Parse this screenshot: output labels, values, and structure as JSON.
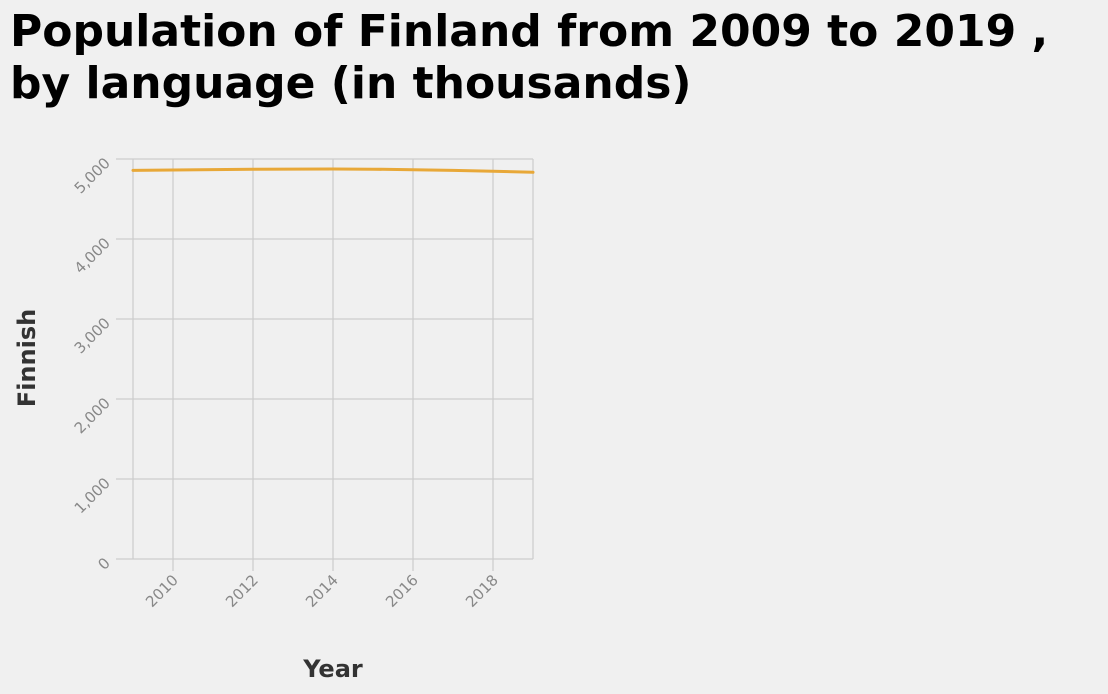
{
  "chart_data": {
    "type": "line",
    "title": "Population of Finland from 2009 to 2019 , by language (in thousands)",
    "xlabel": "Year",
    "ylabel": "Finnish",
    "x": [
      2009,
      2010,
      2011,
      2012,
      2013,
      2014,
      2015,
      2016,
      2017,
      2018,
      2019
    ],
    "series": [
      {
        "values": [
          4857,
          4863,
          4868,
          4872,
          4874,
          4875,
          4872,
          4866,
          4857,
          4847,
          4834
        ],
        "color": "#e8a838"
      }
    ],
    "xlim": [
      2009,
      2019
    ],
    "ylim": [
      0,
      5000
    ],
    "xticks": [
      "2010",
      "2012",
      "2014",
      "2016",
      "2018"
    ],
    "yticks": [
      "0",
      "1,000",
      "2,000",
      "3,000",
      "4,000",
      "5,000"
    ],
    "grid": true
  }
}
